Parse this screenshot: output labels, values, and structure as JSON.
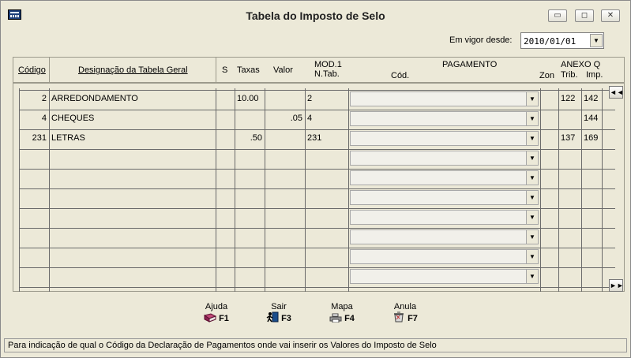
{
  "window": {
    "title": "Tabela do Imposto de Selo"
  },
  "controls": {
    "minimize": "▭",
    "maximize": "◻",
    "close": "✕"
  },
  "vigor": {
    "label": "Em vigor desde:",
    "value": "2010/01/01"
  },
  "columns": {
    "codigo": "Código",
    "designacao": "Designação da Tabela Geral",
    "s": "S",
    "taxas": "Taxas",
    "valor": "Valor",
    "mod1": "MOD.1",
    "ntab": "N.Tab.",
    "pagamento": "PAGAMENTO",
    "cod": "Cód.",
    "zon": "Zon",
    "anexo_q": "ANEXO Q",
    "trib": "Trib.",
    "imp": "Imp."
  },
  "rows": [
    {
      "codigo": "2",
      "designacao": "ARREDONDAMENTO",
      "s": "",
      "taxas": "10.00",
      "valor": "",
      "ntab": "2",
      "cod": "",
      "zon": "",
      "trib": "122",
      "imp": "142"
    },
    {
      "codigo": "4",
      "designacao": "CHEQUES",
      "s": "",
      "taxas": "",
      "valor": ".05",
      "ntab": "4",
      "cod": "",
      "zon": "",
      "trib": "",
      "imp": "144"
    },
    {
      "codigo": "231",
      "designacao": "LETRAS",
      "s": "",
      "taxas": ".50",
      "valor": "",
      "ntab": "231",
      "cod": "",
      "zon": "",
      "trib": "137",
      "imp": "169"
    },
    {
      "codigo": "",
      "designacao": "",
      "s": "",
      "taxas": "",
      "valor": "",
      "ntab": "",
      "cod": "",
      "zon": "",
      "trib": "",
      "imp": ""
    },
    {
      "codigo": "",
      "designacao": "",
      "s": "",
      "taxas": "",
      "valor": "",
      "ntab": "",
      "cod": "",
      "zon": "",
      "trib": "",
      "imp": ""
    },
    {
      "codigo": "",
      "designacao": "",
      "s": "",
      "taxas": "",
      "valor": "",
      "ntab": "",
      "cod": "",
      "zon": "",
      "trib": "",
      "imp": ""
    },
    {
      "codigo": "",
      "designacao": "",
      "s": "",
      "taxas": "",
      "valor": "",
      "ntab": "",
      "cod": "",
      "zon": "",
      "trib": "",
      "imp": ""
    },
    {
      "codigo": "",
      "designacao": "",
      "s": "",
      "taxas": "",
      "valor": "",
      "ntab": "",
      "cod": "",
      "zon": "",
      "trib": "",
      "imp": ""
    },
    {
      "codigo": "",
      "designacao": "",
      "s": "",
      "taxas": "",
      "valor": "",
      "ntab": "",
      "cod": "",
      "zon": "",
      "trib": "",
      "imp": ""
    },
    {
      "codigo": "",
      "designacao": "",
      "s": "",
      "taxas": "",
      "valor": "",
      "ntab": "",
      "cod": "",
      "zon": "",
      "trib": "",
      "imp": ""
    }
  ],
  "side_buttons": {
    "first": "◄◄",
    "last": "►►"
  },
  "function_keys": [
    {
      "label": "Ajuda",
      "key": "F1",
      "icon": "book-icon",
      "color": "#b03060"
    },
    {
      "label": "Sair",
      "key": "F3",
      "icon": "exit-door-icon",
      "color": "#1a4d8c"
    },
    {
      "label": "Mapa",
      "key": "F4",
      "icon": "printer-icon",
      "color": "#707070"
    },
    {
      "label": "Anula",
      "key": "F7",
      "icon": "trash-icon",
      "color": "#707070"
    }
  ],
  "status": {
    "text": "Para indicação de qual o Código da Declaração de Pagamentos onde vai inserir os Valores do Imposto de Selo"
  }
}
